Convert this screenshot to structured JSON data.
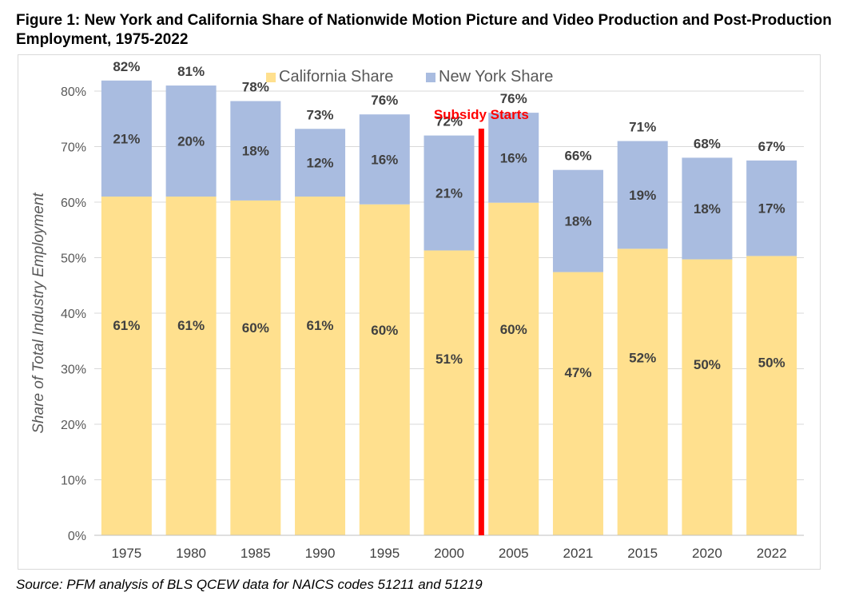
{
  "title": "Figure 1: New York and California Share of Nationwide Motion Picture and Video Production and Post-Production Employment, 1975-2022",
  "source": "Source: PFM analysis of BLS QCEW data for NAICS codes 51211 and 51219",
  "chart_data": {
    "type": "bar",
    "stacked": true,
    "title": "Figure 1: New York and California Share of Nationwide Motion Picture and Video Production and Post-Production Employment, 1975-2022",
    "xlabel": "",
    "ylabel": "Share of Total Industry Employment",
    "ylim": [
      0,
      80
    ],
    "yticks": [
      "0%",
      "10%",
      "20%",
      "30%",
      "40%",
      "50%",
      "60%",
      "70%",
      "80%"
    ],
    "grid": true,
    "legend_position": "top",
    "categories": [
      "1975",
      "1980",
      "1985",
      "1990",
      "1995",
      "2000",
      "2005",
      "2021",
      "2015",
      "2020",
      "2022"
    ],
    "series": [
      {
        "name": "California Share",
        "color": "#FFE08E",
        "values": [
          61,
          61,
          60.3,
          61,
          59.6,
          51.3,
          59.9,
          47.4,
          51.6,
          49.7,
          50.3
        ],
        "labels": [
          "61%",
          "61%",
          "60%",
          "61%",
          "60%",
          "51%",
          "60%",
          "47%",
          "52%",
          "50%",
          "50%"
        ]
      },
      {
        "name": "New York Share",
        "color": "#A9BCE0",
        "values": [
          20.9,
          20,
          17.9,
          12.2,
          16.2,
          20.7,
          16.2,
          18.4,
          19.4,
          18.3,
          17.2
        ],
        "labels": [
          "21%",
          "20%",
          "18%",
          "12%",
          "16%",
          "21%",
          "16%",
          "18%",
          "19%",
          "18%",
          "17%"
        ]
      }
    ],
    "totals": [
      "82%",
      "81%",
      "78%",
      "73%",
      "76%",
      "72%",
      "76%",
      "66%",
      "71%",
      "68%",
      "67%"
    ],
    "annotations": [
      {
        "text": "Subsidy Starts",
        "color": "#FF0000",
        "between": [
          "2000",
          "2005"
        ]
      }
    ]
  }
}
